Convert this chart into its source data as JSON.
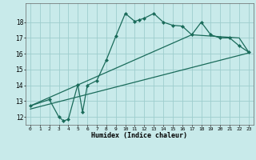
{
  "background_color": "#c8eaea",
  "grid_color": "#9ecece",
  "line_color": "#1a6b5a",
  "marker_color": "#1a6b5a",
  "xlabel": "Humidex (Indice chaleur)",
  "ylim": [
    11.5,
    19.2
  ],
  "xlim": [
    -0.5,
    23.5
  ],
  "yticks": [
    12,
    13,
    14,
    15,
    16,
    17,
    18
  ],
  "xticks": [
    0,
    1,
    2,
    3,
    4,
    5,
    6,
    7,
    8,
    9,
    10,
    11,
    12,
    13,
    14,
    15,
    16,
    17,
    18,
    19,
    20,
    21,
    22,
    23
  ],
  "series1_x": [
    0,
    2,
    3,
    3.5,
    4,
    5,
    5.5,
    6,
    7,
    8,
    9,
    10,
    11,
    11.5,
    12,
    13,
    14,
    15,
    16,
    17,
    18,
    19,
    20,
    21,
    22,
    23
  ],
  "series1_y": [
    12.7,
    13.1,
    12.0,
    11.75,
    11.85,
    14.05,
    12.3,
    14.0,
    14.3,
    15.6,
    17.1,
    18.55,
    18.05,
    18.15,
    18.25,
    18.55,
    18.0,
    17.8,
    17.75,
    17.2,
    18.0,
    17.2,
    17.0,
    17.0,
    16.5,
    16.1
  ],
  "series2_x": [
    0,
    17,
    22,
    23
  ],
  "series2_y": [
    12.7,
    17.2,
    17.0,
    16.1
  ],
  "series3_x": [
    0,
    23
  ],
  "series3_y": [
    12.5,
    16.05
  ]
}
